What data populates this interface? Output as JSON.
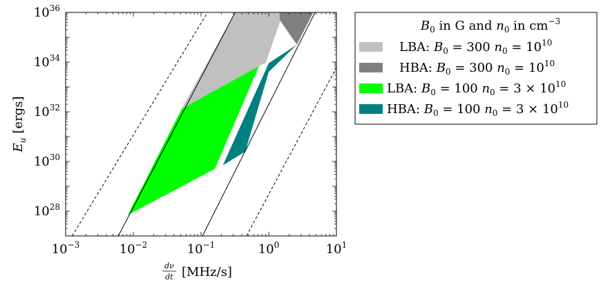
{
  "chart_data": {
    "type": "area",
    "x_scale": "log",
    "y_scale": "log",
    "xlim": [
      0.001,
      10
    ],
    "ylim": [
      1e+27,
      1e+36
    ],
    "grid": false,
    "legend_position": "outside-right",
    "xlabel_num": "dν",
    "xlabel_den": "dt",
    "xlabel_unit": "[MHz/s]",
    "ylabel_main": "E",
    "ylabel_sub": "u",
    "ylabel_unit": "[ergs]",
    "x_ticks": [
      {
        "base": "10",
        "exp": "−3",
        "value": 0.001
      },
      {
        "base": "10",
        "exp": "−2",
        "value": 0.01
      },
      {
        "base": "10",
        "exp": "−1",
        "value": 0.1
      },
      {
        "base": "10",
        "exp": "0",
        "value": 1
      },
      {
        "base": "10",
        "exp": "1",
        "value": 10
      }
    ],
    "y_ticks": [
      {
        "base": "10",
        "exp": "28",
        "value": 1e+28
      },
      {
        "base": "10",
        "exp": "30",
        "value": 1e+30
      },
      {
        "base": "10",
        "exp": "32",
        "value": 1e+32
      },
      {
        "base": "10",
        "exp": "34",
        "value": 1e+34
      },
      {
        "base": "10",
        "exp": "36",
        "value": 1e+36
      }
    ],
    "legend_title": {
      "t1": "B",
      "t1_sub": "0",
      "t2": " in G and ",
      "t3": "n",
      "t3_sub": "0",
      "t4": " in cm",
      "t4_sup": "−3"
    },
    "series": [
      {
        "name": "LBA: B0 = 300 n0 = 10^10",
        "color": "#c0c0c0",
        "polygon": [
          [
            0.0515,
            1.3e+32
          ],
          [
            0.33,
            1.2e+36
          ],
          [
            1.5,
            1.2e+36
          ],
          [
            1.5,
            5e+35
          ],
          [
            0.9,
            9e+33
          ],
          [
            0.72,
            7e+33
          ]
        ]
      },
      {
        "name": "HBA: B0 = 300 n0 = 10^10",
        "color": "#808080",
        "polygon": [
          [
            1.45,
            1.2e+36
          ],
          [
            2.6,
            1e+36
          ],
          [
            4.7,
            1.2e+36
          ],
          [
            2.6,
            5e+34
          ],
          [
            1.45,
            5e+35
          ]
        ]
      },
      {
        "name": "LBA: B0 = 100 n0 = 3 × 10^10",
        "color": "#00ff00",
        "polygon": [
          [
            0.0083,
            7e+27
          ],
          [
            0.0515,
            1.3e+32
          ],
          [
            0.72,
            7e+33
          ],
          [
            0.16,
            5e+29
          ]
        ]
      },
      {
        "name": "HBA: B0 = 100 n0 = 3 × 10^10",
        "color": "#008080",
        "polygon": [
          [
            0.21,
            7e+29
          ],
          [
            0.45,
            2.5e+30
          ],
          [
            1.0,
            4e+33
          ],
          [
            2.6,
            5e+34
          ],
          [
            1.0,
            9e+33
          ]
        ]
      }
    ],
    "lines": [
      {
        "style": "solid",
        "points": [
          [
            0.006,
            1e+27
          ],
          [
            0.33,
            1.2e+36
          ]
        ]
      },
      {
        "style": "solid",
        "points": [
          [
            0.105,
            1e+27
          ],
          [
            5.0,
            1.2e+36
          ]
        ]
      },
      {
        "style": "dashed",
        "points": [
          [
            0.00125,
            1e+27
          ],
          [
            0.13,
            1.2e+36
          ]
        ]
      },
      {
        "style": "dashed",
        "points": [
          [
            0.47,
            1e+27
          ],
          [
            10,
            6e+33
          ]
        ]
      }
    ],
    "legend": [
      {
        "prefix": "LBA: ",
        "b": "B",
        "b_sub": "0",
        "eq1": " = 300 ",
        "n": "n",
        "n_sub": "0",
        "eq2": " = 10",
        "sup": "10",
        "color": "#c0c0c0"
      },
      {
        "prefix": "HBA: ",
        "b": "B",
        "b_sub": "0",
        "eq1": " = 300 ",
        "n": "n",
        "n_sub": "0",
        "eq2": " = 10",
        "sup": "10",
        "color": "#808080"
      },
      {
        "prefix": "LBA: ",
        "b": "B",
        "b_sub": "0",
        "eq1": " = 100 ",
        "n": "n",
        "n_sub": "0",
        "eq2": " = 3 × 10",
        "sup": "10",
        "color": "#00ff00"
      },
      {
        "prefix": "HBA: ",
        "b": "B",
        "b_sub": "0",
        "eq1": " = 100 ",
        "n": "n",
        "n_sub": "0",
        "eq2": " = 3 × 10",
        "sup": "10",
        "color": "#008080"
      }
    ]
  }
}
